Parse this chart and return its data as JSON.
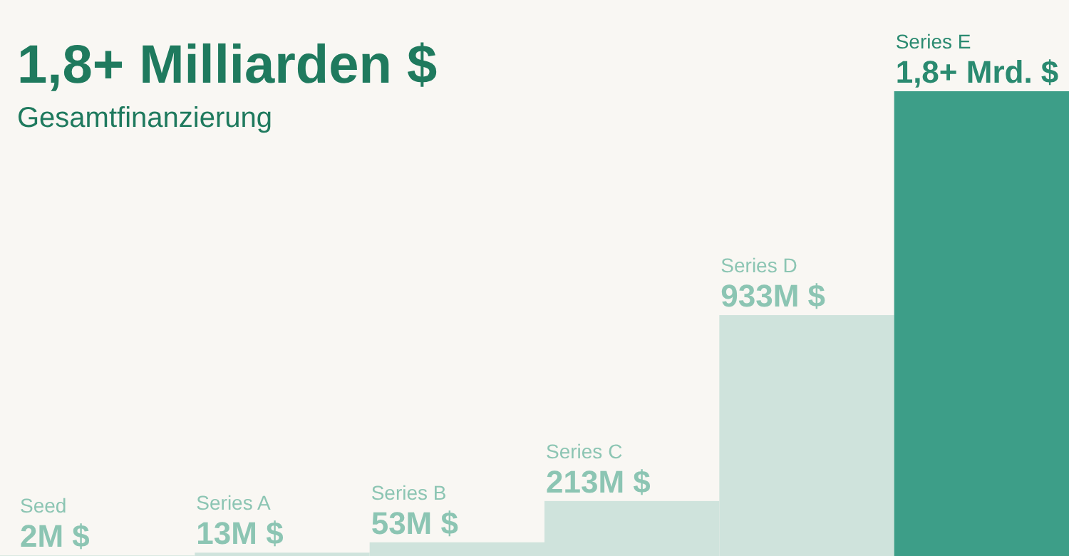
{
  "chart_data": {
    "type": "bar",
    "title": "1,8+ Milliarden $",
    "subtitle": "Gesamtfinanzierung",
    "categories": [
      "Seed",
      "Series A",
      "Series B",
      "Series C",
      "Series D",
      "Series E"
    ],
    "values": [
      2,
      13,
      53,
      213,
      933,
      1800
    ],
    "colors": [
      "#cfe3dc",
      "#cfe3dc",
      "#cfe3dc",
      "#cfe3dc",
      "#cfe3dc",
      "#3d9e88"
    ],
    "value_labels": [
      "2M $",
      "13M $",
      "53M $",
      "213M $",
      "933M $",
      "1,8+ Mrd. $"
    ]
  }
}
